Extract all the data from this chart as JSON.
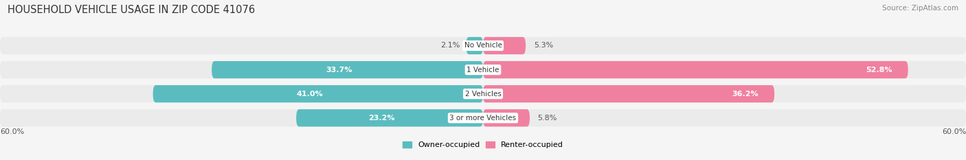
{
  "title": "HOUSEHOLD VEHICLE USAGE IN ZIP CODE 41076",
  "source": "Source: ZipAtlas.com",
  "categories": [
    "No Vehicle",
    "1 Vehicle",
    "2 Vehicles",
    "3 or more Vehicles"
  ],
  "owner_values": [
    2.1,
    33.7,
    41.0,
    23.2
  ],
  "renter_values": [
    5.3,
    52.8,
    36.2,
    5.8
  ],
  "owner_color": "#5bbcbf",
  "renter_color": "#f080a0",
  "owner_bg_color": "#d0ecee",
  "renter_bg_color": "#fadadd",
  "axis_max": 60.0,
  "x_axis_label_left": "60.0%",
  "x_axis_label_right": "60.0%",
  "legend_owner": "Owner-occupied",
  "legend_renter": "Renter-occupied",
  "title_fontsize": 10.5,
  "source_fontsize": 7.5,
  "label_fontsize": 8,
  "cat_fontsize": 7.5,
  "bar_height": 0.72,
  "row_bg_color": "#ebebeb",
  "background_color": "#f5f5f5"
}
